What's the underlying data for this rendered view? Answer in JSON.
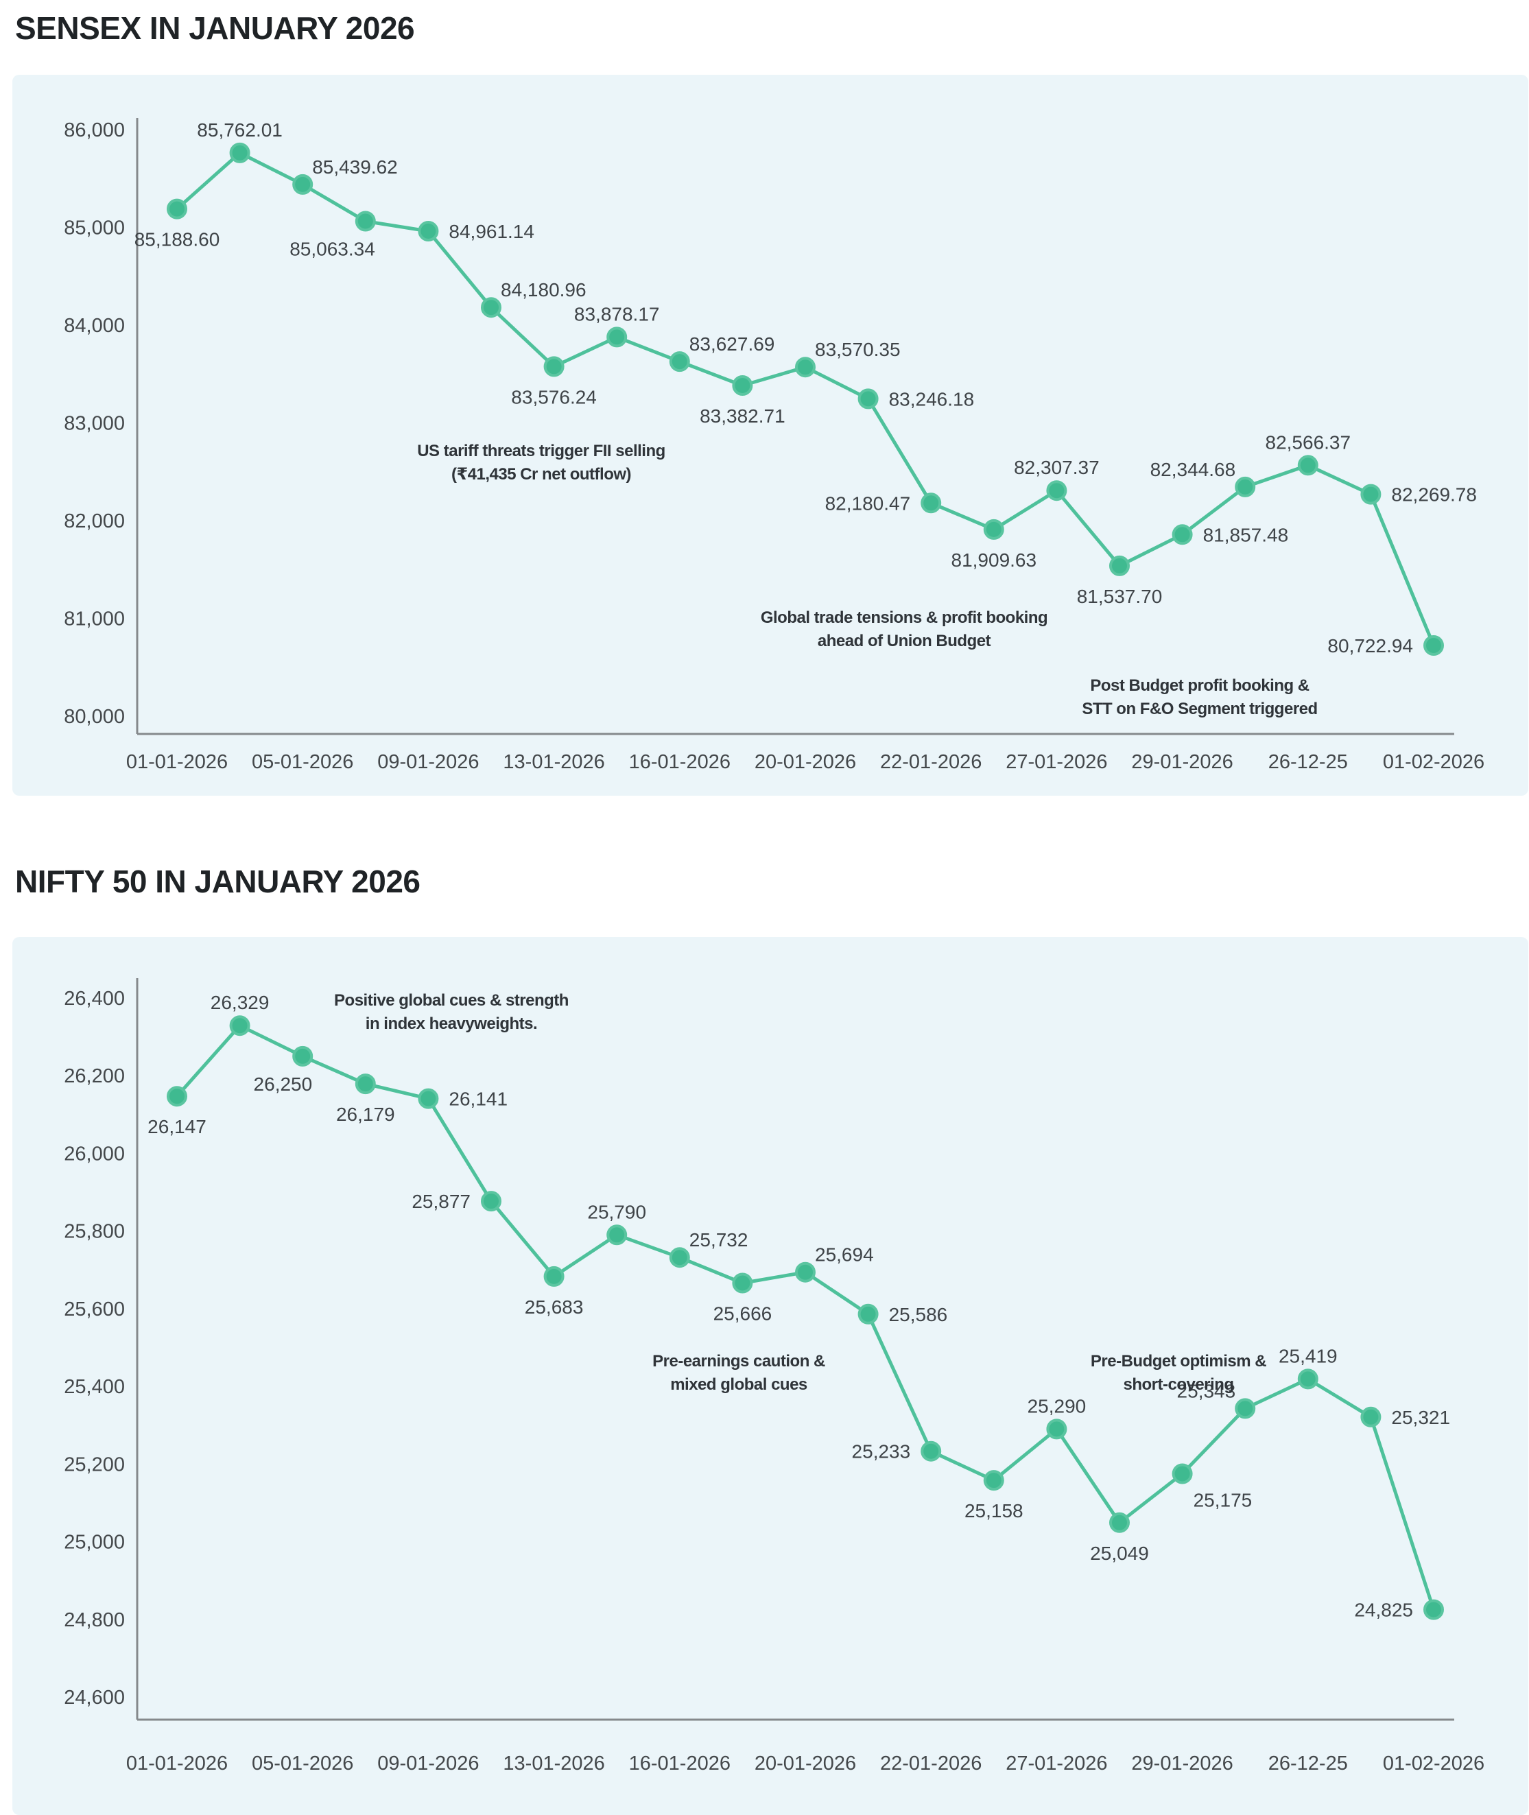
{
  "style": {
    "panel_bg": "#ebf5f9",
    "accent": "#4ec19b",
    "marker_fill": "#3fba90",
    "marker_stroke": "#5ac5a0",
    "axis_color": "#85898c",
    "tick_color": "#44484b",
    "point_label_color": "#3f4448",
    "annotation_color": "#2f3439",
    "title_color": "#1f2326"
  },
  "chart_data": [
    {
      "type": "line",
      "title": "SENSEX IN JANUARY 2026",
      "series_name": "SENSEX",
      "xlabel": "",
      "ylabel": "",
      "grid": false,
      "legend": false,
      "ylim": [
        80000,
        86000
      ],
      "y_tick_step": 1000,
      "y_tick_labels": [
        "86,000",
        "85,000",
        "84,000",
        "83,000",
        "82,000",
        "81,000",
        "80,000"
      ],
      "x_tick_labels": [
        "01-01-2026",
        "05-01-2026",
        "09-01-2026",
        "13-01-2026",
        "16-01-2026",
        "20-01-2026",
        "22-01-2026",
        "27-01-2026",
        "29-01-2026",
        "26-12-25",
        "01-02-2026"
      ],
      "values": [
        85188.6,
        85762.01,
        85439.62,
        85063.34,
        84961.14,
        84180.96,
        83576.24,
        83878.17,
        83627.69,
        83382.71,
        83570.35,
        83246.18,
        82180.47,
        81909.63,
        82307.37,
        81537.7,
        81857.48,
        82344.68,
        82566.37,
        82269.78,
        80722.94
      ],
      "point_labels": [
        "85,188.60",
        "85,762.01",
        "85,439.62",
        "85,063.34",
        "84,961.14",
        "84,180.96",
        "83,576.24",
        "83,878.17",
        "83,627.69",
        "83,382.71",
        "83,570.35",
        "83,246.18",
        "82,180.47",
        "81,909.63",
        "82,307.37",
        "81,537.70",
        "81,857.48",
        "82,344.68",
        "82,566.37",
        "82,269.78",
        "80,722.94"
      ],
      "label_placements": [
        "below",
        "above",
        "above-right",
        "below-left",
        "right",
        "above-right",
        "below",
        "above",
        "above-right",
        "below",
        "above-right",
        "right",
        "left",
        "below",
        "above",
        "below",
        "right",
        "above-left",
        "above",
        "right",
        "left"
      ],
      "annotations": [
        {
          "lines": [
            "US tariff threats trigger FII selling",
            "(₹41,435 Cr net outflow)"
          ],
          "x": 771,
          "y": 556
        },
        {
          "lines": [
            "Global trade tensions & profit booking",
            "ahead of Union Budget"
          ],
          "x": 1300,
          "y": 799
        },
        {
          "lines": [
            "Post Budget profit booking &",
            "STT on F&O Segment triggered"
          ],
          "x": 1731,
          "y": 898
        }
      ]
    },
    {
      "type": "line",
      "title": "NIFTY 50 IN JANUARY 2026",
      "series_name": "NIFTY 50",
      "xlabel": "",
      "ylabel": "",
      "grid": false,
      "legend": false,
      "ylim": [
        24600,
        26400
      ],
      "y_tick_step": 200,
      "y_tick_labels": [
        "26,400",
        "26,200",
        "26,000",
        "25,800",
        "25,600",
        "25,400",
        "25,200",
        "25,000",
        "24,800",
        "24,600"
      ],
      "x_tick_labels": [
        "01-01-2026",
        "05-01-2026",
        "09-01-2026",
        "13-01-2026",
        "16-01-2026",
        "20-01-2026",
        "22-01-2026",
        "27-01-2026",
        "29-01-2026",
        "26-12-25",
        "01-02-2026"
      ],
      "values": [
        26147,
        26329,
        26250,
        26179,
        26141,
        25877,
        25683,
        25790,
        25732,
        25666,
        25694,
        25586,
        25233,
        25158,
        25290,
        25049,
        25175,
        25343,
        25419,
        25321,
        24825
      ],
      "point_labels": [
        "26,147",
        "26,329",
        "26,250",
        "26,179",
        "26,141",
        "25,877",
        "25,683",
        "25,790",
        "25,732",
        "25,666",
        "25,694",
        "25,586",
        "25,233",
        "25,158",
        "25,290",
        "25,049",
        "25,175",
        "25,343",
        "25,419",
        "25,321",
        "24,825"
      ],
      "label_placements": [
        "below",
        "above",
        "below-left",
        "below",
        "right",
        "left",
        "below",
        "above",
        "above-right",
        "below",
        "above-right",
        "right",
        "left",
        "below",
        "above",
        "below",
        "below-right",
        "above-left",
        "above",
        "right",
        "left"
      ],
      "annotations": [
        {
          "lines": [
            "Positive global cues & strength",
            "in index heavyweights."
          ],
          "x": 640,
          "y": 100
        },
        {
          "lines": [
            "Pre-earnings caution &",
            "mixed global cues"
          ],
          "x": 1059,
          "y": 626
        },
        {
          "lines": [
            "Pre-Budget optimism &",
            "short-covering"
          ],
          "x": 1700,
          "y": 626
        }
      ]
    }
  ]
}
